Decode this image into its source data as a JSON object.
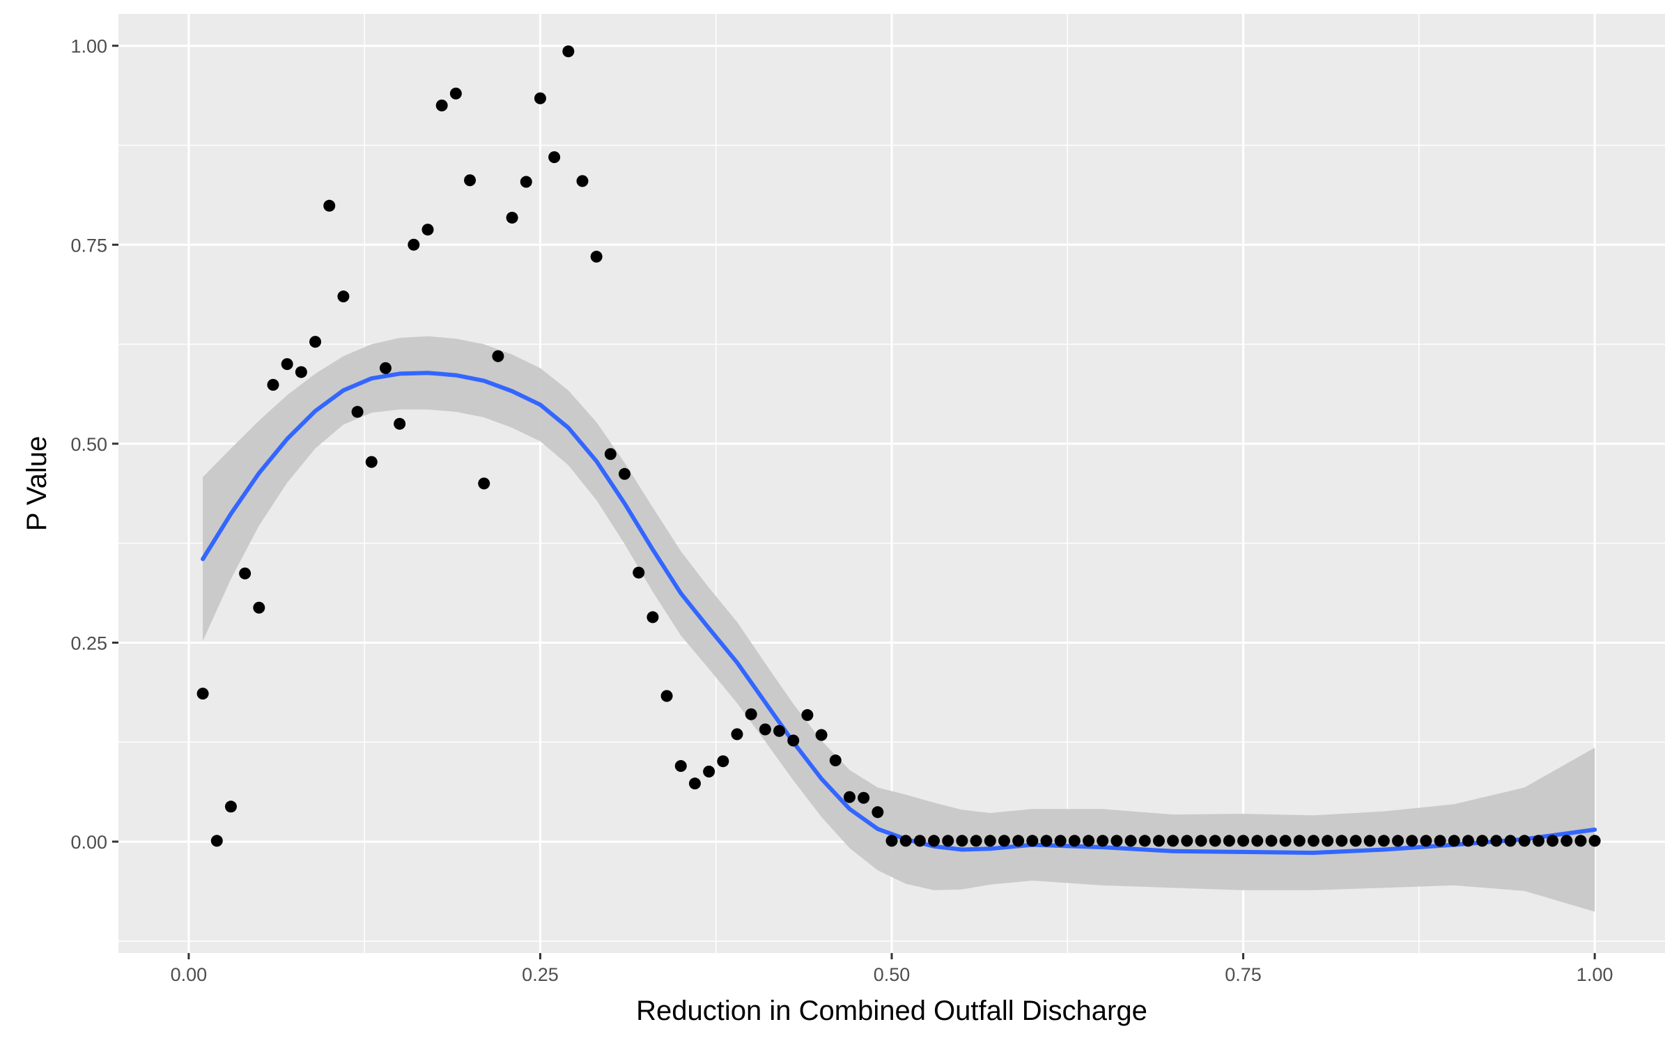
{
  "chart_data": {
    "type": "scatter",
    "title": "",
    "xlabel": "Reduction in Combined Outfall Discharge",
    "ylabel": "P Value",
    "xlim": [
      -0.05,
      1.05
    ],
    "ylim": [
      -0.14,
      1.04
    ],
    "x_ticks": [
      0.0,
      0.25,
      0.5,
      0.75,
      1.0
    ],
    "x_tick_labels": [
      "0.00",
      "0.25",
      "0.50",
      "0.75",
      "1.00"
    ],
    "y_ticks": [
      0.0,
      0.25,
      0.5,
      0.75,
      1.0
    ],
    "y_tick_labels": [
      "0.00",
      "0.25",
      "0.50",
      "0.75",
      "1.00"
    ],
    "grid": true,
    "legend": "none",
    "colors": {
      "panel": "#ebebeb",
      "gridline": "#ffffff",
      "points": "#000000",
      "smooth_line": "#3366ff",
      "confidence_band": "#c8c8c8"
    },
    "series": [
      {
        "type": "scatter",
        "points": [
          [
            0.01,
            0.186
          ],
          [
            0.02,
            0.001
          ],
          [
            0.03,
            0.044
          ],
          [
            0.04,
            0.337
          ],
          [
            0.05,
            0.294
          ],
          [
            0.06,
            0.574
          ],
          [
            0.07,
            0.6
          ],
          [
            0.08,
            0.59
          ],
          [
            0.09,
            0.628
          ],
          [
            0.1,
            0.799
          ],
          [
            0.11,
            0.685
          ],
          [
            0.12,
            0.54
          ],
          [
            0.13,
            0.477
          ],
          [
            0.14,
            0.595
          ],
          [
            0.15,
            0.525
          ],
          [
            0.16,
            0.75
          ],
          [
            0.17,
            0.769
          ],
          [
            0.18,
            0.925
          ],
          [
            0.19,
            0.94
          ],
          [
            0.2,
            0.831
          ],
          [
            0.21,
            0.45
          ],
          [
            0.22,
            0.61
          ],
          [
            0.23,
            0.784
          ],
          [
            0.24,
            0.829
          ],
          [
            0.25,
            0.934
          ],
          [
            0.26,
            0.86
          ],
          [
            0.27,
            0.993
          ],
          [
            0.28,
            0.83
          ],
          [
            0.29,
            0.735
          ],
          [
            0.3,
            0.487
          ],
          [
            0.31,
            0.462
          ],
          [
            0.32,
            0.338
          ],
          [
            0.33,
            0.282
          ],
          [
            0.34,
            0.183
          ],
          [
            0.35,
            0.095
          ],
          [
            0.36,
            0.073
          ],
          [
            0.37,
            0.088
          ],
          [
            0.38,
            0.101
          ],
          [
            0.39,
            0.135
          ],
          [
            0.4,
            0.16
          ],
          [
            0.41,
            0.141
          ],
          [
            0.42,
            0.139
          ],
          [
            0.43,
            0.127
          ],
          [
            0.44,
            0.159
          ],
          [
            0.45,
            0.134
          ],
          [
            0.46,
            0.102
          ],
          [
            0.47,
            0.056
          ],
          [
            0.48,
            0.055
          ],
          [
            0.49,
            0.037
          ],
          [
            0.5,
            0.001
          ],
          [
            0.51,
            0.001
          ],
          [
            0.52,
            0.001
          ],
          [
            0.53,
            0.001
          ],
          [
            0.54,
            0.001
          ],
          [
            0.55,
            0.001
          ],
          [
            0.56,
            0.001
          ],
          [
            0.57,
            0.001
          ],
          [
            0.58,
            0.001
          ],
          [
            0.59,
            0.001
          ],
          [
            0.6,
            0.001
          ],
          [
            0.61,
            0.001
          ],
          [
            0.62,
            0.001
          ],
          [
            0.63,
            0.001
          ],
          [
            0.64,
            0.001
          ],
          [
            0.65,
            0.001
          ],
          [
            0.66,
            0.001
          ],
          [
            0.67,
            0.001
          ],
          [
            0.68,
            0.001
          ],
          [
            0.69,
            0.001
          ],
          [
            0.7,
            0.001
          ],
          [
            0.71,
            0.001
          ],
          [
            0.72,
            0.001
          ],
          [
            0.73,
            0.001
          ],
          [
            0.74,
            0.001
          ],
          [
            0.75,
            0.001
          ],
          [
            0.76,
            0.001
          ],
          [
            0.77,
            0.001
          ],
          [
            0.78,
            0.001
          ],
          [
            0.79,
            0.001
          ],
          [
            0.8,
            0.001
          ],
          [
            0.81,
            0.001
          ],
          [
            0.82,
            0.001
          ],
          [
            0.83,
            0.001
          ],
          [
            0.84,
            0.001
          ],
          [
            0.85,
            0.001
          ],
          [
            0.86,
            0.001
          ],
          [
            0.87,
            0.001
          ],
          [
            0.88,
            0.001
          ],
          [
            0.89,
            0.001
          ],
          [
            0.9,
            0.001
          ],
          [
            0.91,
            0.001
          ],
          [
            0.92,
            0.001
          ],
          [
            0.93,
            0.001
          ],
          [
            0.94,
            0.001
          ],
          [
            0.95,
            0.001
          ],
          [
            0.96,
            0.001
          ],
          [
            0.97,
            0.001
          ],
          [
            0.98,
            0.001
          ],
          [
            0.99,
            0.001
          ],
          [
            1.0,
            0.001
          ]
        ]
      },
      {
        "type": "line",
        "smooth": true,
        "points": [
          [
            0.01,
            0.355
          ],
          [
            0.03,
            0.412
          ],
          [
            0.05,
            0.463
          ],
          [
            0.07,
            0.506
          ],
          [
            0.09,
            0.541
          ],
          [
            0.11,
            0.567
          ],
          [
            0.13,
            0.582
          ],
          [
            0.15,
            0.588
          ],
          [
            0.17,
            0.589
          ],
          [
            0.19,
            0.586
          ],
          [
            0.21,
            0.579
          ],
          [
            0.23,
            0.566
          ],
          [
            0.25,
            0.549
          ],
          [
            0.27,
            0.52
          ],
          [
            0.29,
            0.478
          ],
          [
            0.31,
            0.425
          ],
          [
            0.33,
            0.367
          ],
          [
            0.35,
            0.312
          ],
          [
            0.37,
            0.268
          ],
          [
            0.39,
            0.225
          ],
          [
            0.41,
            0.175
          ],
          [
            0.43,
            0.125
          ],
          [
            0.45,
            0.079
          ],
          [
            0.47,
            0.041
          ],
          [
            0.49,
            0.016
          ],
          [
            0.51,
            0.003
          ],
          [
            0.53,
            -0.006
          ],
          [
            0.55,
            -0.01
          ],
          [
            0.57,
            -0.009
          ],
          [
            0.6,
            -0.004
          ],
          [
            0.65,
            -0.007
          ],
          [
            0.7,
            -0.012
          ],
          [
            0.75,
            -0.013
          ],
          [
            0.8,
            -0.014
          ],
          [
            0.85,
            -0.01
          ],
          [
            0.9,
            -0.004
          ],
          [
            0.95,
            0.003
          ],
          [
            1.0,
            0.015
          ]
        ],
        "lower": [
          [
            0.01,
            0.252
          ],
          [
            0.03,
            0.33
          ],
          [
            0.05,
            0.397
          ],
          [
            0.07,
            0.451
          ],
          [
            0.09,
            0.494
          ],
          [
            0.11,
            0.524
          ],
          [
            0.13,
            0.539
          ],
          [
            0.15,
            0.543
          ],
          [
            0.17,
            0.543
          ],
          [
            0.19,
            0.54
          ],
          [
            0.21,
            0.533
          ],
          [
            0.23,
            0.52
          ],
          [
            0.25,
            0.503
          ],
          [
            0.27,
            0.473
          ],
          [
            0.29,
            0.429
          ],
          [
            0.31,
            0.374
          ],
          [
            0.33,
            0.314
          ],
          [
            0.35,
            0.259
          ],
          [
            0.37,
            0.217
          ],
          [
            0.39,
            0.174
          ],
          [
            0.41,
            0.126
          ],
          [
            0.43,
            0.077
          ],
          [
            0.45,
            0.031
          ],
          [
            0.47,
            -0.008
          ],
          [
            0.49,
            -0.036
          ],
          [
            0.51,
            -0.053
          ],
          [
            0.53,
            -0.061
          ],
          [
            0.55,
            -0.06
          ],
          [
            0.57,
            -0.054
          ],
          [
            0.6,
            -0.049
          ],
          [
            0.65,
            -0.055
          ],
          [
            0.7,
            -0.058
          ],
          [
            0.75,
            -0.061
          ],
          [
            0.8,
            -0.061
          ],
          [
            0.85,
            -0.058
          ],
          [
            0.9,
            -0.055
          ],
          [
            0.95,
            -0.062
          ],
          [
            1.0,
            -0.088
          ]
        ],
        "upper": [
          [
            0.01,
            0.458
          ],
          [
            0.03,
            0.494
          ],
          [
            0.05,
            0.529
          ],
          [
            0.07,
            0.561
          ],
          [
            0.09,
            0.588
          ],
          [
            0.11,
            0.61
          ],
          [
            0.13,
            0.625
          ],
          [
            0.15,
            0.633
          ],
          [
            0.17,
            0.635
          ],
          [
            0.19,
            0.632
          ],
          [
            0.21,
            0.625
          ],
          [
            0.23,
            0.612
          ],
          [
            0.25,
            0.595
          ],
          [
            0.27,
            0.567
          ],
          [
            0.29,
            0.527
          ],
          [
            0.31,
            0.476
          ],
          [
            0.33,
            0.42
          ],
          [
            0.35,
            0.365
          ],
          [
            0.37,
            0.319
          ],
          [
            0.39,
            0.276
          ],
          [
            0.41,
            0.224
          ],
          [
            0.43,
            0.173
          ],
          [
            0.45,
            0.127
          ],
          [
            0.47,
            0.09
          ],
          [
            0.49,
            0.068
          ],
          [
            0.51,
            0.059
          ],
          [
            0.53,
            0.049
          ],
          [
            0.55,
            0.04
          ],
          [
            0.57,
            0.036
          ],
          [
            0.6,
            0.041
          ],
          [
            0.65,
            0.041
          ],
          [
            0.7,
            0.034
          ],
          [
            0.75,
            0.035
          ],
          [
            0.8,
            0.033
          ],
          [
            0.85,
            0.038
          ],
          [
            0.9,
            0.047
          ],
          [
            0.95,
            0.068
          ],
          [
            1.0,
            0.118
          ]
        ]
      }
    ]
  }
}
